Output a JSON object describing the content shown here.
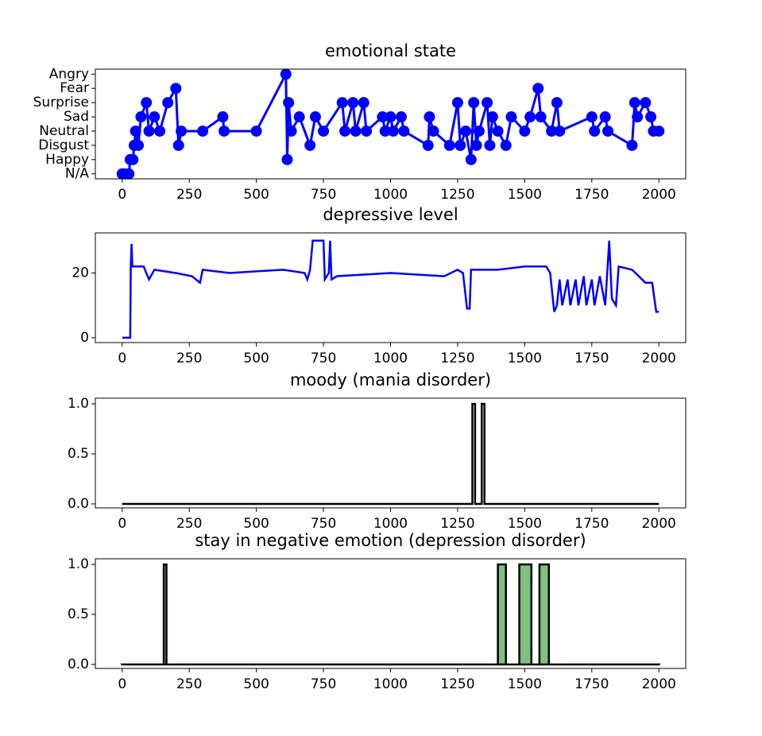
{
  "chart_data": [
    {
      "type": "line",
      "title": "emotional state",
      "marker": "o",
      "color": "#0000ff",
      "x": [
        0,
        10,
        25,
        30,
        40,
        45,
        50,
        60,
        70,
        90,
        100,
        120,
        140,
        170,
        200,
        210,
        220,
        300,
        375,
        380,
        500,
        610,
        615,
        620,
        630,
        660,
        700,
        720,
        750,
        820,
        830,
        860,
        870,
        900,
        910,
        970,
        980,
        1000,
        1010,
        1040,
        1050,
        1140,
        1145,
        1160,
        1220,
        1250,
        1260,
        1280,
        1300,
        1310,
        1320,
        1330,
        1360,
        1370,
        1380,
        1400,
        1430,
        1450,
        1500,
        1520,
        1550,
        1560,
        1600,
        1620,
        1630,
        1750,
        1760,
        1800,
        1810,
        1900,
        1910,
        1920,
        1950,
        1970,
        1980,
        2000
      ],
      "values": [
        0,
        0,
        0,
        1,
        1,
        2,
        3,
        2,
        4,
        5,
        3,
        4,
        3,
        5,
        6,
        2,
        3,
        3,
        4,
        3,
        3,
        7,
        1,
        5,
        3,
        4,
        2,
        4,
        3,
        5,
        3,
        5,
        3,
        5,
        3,
        4,
        3,
        4,
        3,
        4,
        3,
        2,
        4,
        3,
        2,
        5,
        2,
        3,
        1,
        5,
        2,
        3,
        5,
        2,
        4,
        3,
        2,
        4,
        3,
        4,
        6,
        4,
        3,
        5,
        3,
        4,
        3,
        4,
        3,
        2,
        5,
        4,
        5,
        4,
        3,
        3
      ],
      "xlim": [
        -100,
        2100
      ],
      "xticks": [
        0,
        250,
        500,
        750,
        1000,
        1250,
        1500,
        1750,
        2000
      ],
      "ylim": [
        -0.35,
        7.35
      ],
      "yticks": [
        {
          "value": 0,
          "label": "N/A"
        },
        {
          "value": 1,
          "label": "Happy"
        },
        {
          "value": 2,
          "label": "Disgust"
        },
        {
          "value": 3,
          "label": "Neutral"
        },
        {
          "value": 4,
          "label": "Sad"
        },
        {
          "value": 5,
          "label": "Surprise"
        },
        {
          "value": 6,
          "label": "Fear"
        },
        {
          "value": 7,
          "label": "Angry"
        }
      ]
    },
    {
      "type": "line",
      "title": "depressive level",
      "color": "#0000ff",
      "x": [
        0,
        30,
        32,
        35,
        38,
        80,
        100,
        120,
        200,
        260,
        290,
        300,
        400,
        500,
        600,
        680,
        690,
        700,
        710,
        750,
        755,
        770,
        775,
        780,
        800,
        1000,
        1100,
        1200,
        1250,
        1270,
        1285,
        1295,
        1300,
        1400,
        1500,
        1580,
        1595,
        1610,
        1620,
        1630,
        1640,
        1660,
        1670,
        1690,
        1700,
        1720,
        1730,
        1750,
        1760,
        1780,
        1800,
        1815,
        1825,
        1840,
        1850,
        1900,
        1950,
        1975,
        1990,
        2000
      ],
      "values": [
        0,
        0,
        22,
        29,
        22,
        22,
        18,
        21,
        20,
        19,
        17,
        21,
        20,
        20.5,
        21,
        20,
        18,
        21,
        30,
        30,
        18,
        20,
        30,
        18,
        19,
        20,
        19.5,
        19,
        21,
        20,
        9,
        9,
        21,
        21,
        22,
        22,
        20,
        8,
        10,
        18,
        10,
        18,
        10,
        18,
        10,
        19,
        10,
        18,
        10,
        19,
        10,
        30,
        12,
        10,
        22,
        21,
        17,
        17,
        8,
        8
      ],
      "xlim": [
        -100,
        2100
      ],
      "xticks": [
        0,
        250,
        500,
        750,
        1000,
        1250,
        1500,
        1750,
        2000
      ],
      "ylim": [
        -1.5,
        32.4
      ],
      "yticks": [
        0,
        20
      ]
    },
    {
      "type": "line",
      "title": "moody (mania disorder)",
      "color": "#000000",
      "x": [
        0,
        1305,
        1305,
        1315,
        1315,
        1340,
        1340,
        1350,
        1350,
        2000
      ],
      "values": [
        0,
        0,
        1,
        1,
        0,
        0,
        1,
        1,
        0,
        0
      ],
      "xlim": [
        -100,
        2100
      ],
      "xticks": [
        0,
        250,
        500,
        750,
        1000,
        1250,
        1500,
        1750,
        2000
      ],
      "ylim": [
        -0.04,
        1.056
      ],
      "yticks": [
        {
          "value": 0,
          "label": "0.0"
        },
        {
          "value": 0.5,
          "label": "0.5"
        },
        {
          "value": 1,
          "label": "1.0"
        }
      ]
    },
    {
      "type": "area",
      "title": "stay in negative emotion (depression disorder)",
      "color": "#80c080",
      "edgecolor": "#000000",
      "x": [
        0,
        155,
        155,
        165,
        165,
        1400,
        1400,
        1430,
        1430,
        1480,
        1480,
        1525,
        1525,
        1555,
        1555,
        1590,
        1590,
        2000
      ],
      "values": [
        0,
        0,
        1,
        1,
        0,
        0,
        1,
        1,
        0,
        0,
        1,
        1,
        0,
        0,
        1,
        1,
        0,
        0
      ],
      "xlim": [
        -100,
        2100
      ],
      "xticks": [
        0,
        250,
        500,
        750,
        1000,
        1250,
        1500,
        1750,
        2000
      ],
      "ylim": [
        -0.04,
        1.056
      ],
      "yticks": [
        {
          "value": 0,
          "label": "0.0"
        },
        {
          "value": 0.5,
          "label": "0.5"
        },
        {
          "value": 1,
          "label": "1.0"
        }
      ]
    }
  ]
}
